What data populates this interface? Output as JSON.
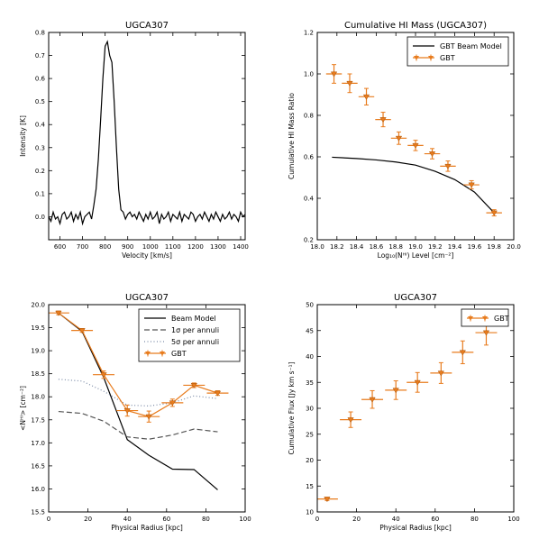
{
  "chart_data": [
    {
      "type": "line",
      "title": "UGCA307",
      "xlabel": "Velocity [km/s]",
      "ylabel": "Intensity [K]",
      "xlim": [
        550,
        1420
      ],
      "ylim": [
        -0.1,
        0.8
      ],
      "xticks": [
        600,
        700,
        800,
        900,
        1000,
        1100,
        1200,
        1300,
        1400
      ],
      "yticks": [
        0.0,
        0.1,
        0.2,
        0.3,
        0.4,
        0.5,
        0.6,
        0.7,
        0.8
      ],
      "x": [
        550,
        560,
        570,
        580,
        590,
        600,
        610,
        620,
        630,
        640,
        650,
        660,
        670,
        680,
        690,
        700,
        710,
        720,
        730,
        740,
        750,
        760,
        770,
        780,
        790,
        800,
        810,
        820,
        830,
        840,
        850,
        860,
        870,
        880,
        890,
        900,
        910,
        920,
        930,
        940,
        950,
        960,
        970,
        980,
        990,
        1000,
        1010,
        1020,
        1030,
        1040,
        1050,
        1060,
        1070,
        1080,
        1090,
        1100,
        1110,
        1120,
        1130,
        1140,
        1150,
        1160,
        1170,
        1180,
        1190,
        1200,
        1210,
        1220,
        1230,
        1240,
        1250,
        1260,
        1270,
        1280,
        1290,
        1300,
        1310,
        1320,
        1330,
        1340,
        1350,
        1360,
        1370,
        1380,
        1390,
        1400,
        1410,
        1420
      ],
      "values": [
        0.0,
        -0.02,
        0.02,
        -0.01,
        0.0,
        -0.03,
        0.01,
        0.02,
        -0.01,
        0.0,
        0.02,
        -0.02,
        0.01,
        -0.01,
        0.02,
        -0.03,
        0.0,
        0.01,
        0.02,
        -0.01,
        0.05,
        0.12,
        0.25,
        0.42,
        0.6,
        0.74,
        0.76,
        0.7,
        0.67,
        0.5,
        0.3,
        0.12,
        0.03,
        0.02,
        -0.01,
        0.01,
        0.02,
        0.0,
        0.01,
        -0.01,
        0.02,
        0.0,
        -0.02,
        0.01,
        -0.01,
        0.02,
        -0.01,
        0.0,
        0.02,
        -0.03,
        0.01,
        -0.01,
        0.0,
        0.02,
        -0.02,
        0.01,
        0.0,
        -0.01,
        0.02,
        -0.02,
        0.01,
        0.0,
        -0.01,
        0.02,
        0.01,
        -0.02,
        0.0,
        0.01,
        -0.01,
        0.02,
        0.0,
        -0.02,
        0.01,
        -0.01,
        0.02,
        0.0,
        -0.02,
        0.01,
        -0.01,
        0.0,
        0.02,
        -0.01,
        0.01,
        0.0,
        -0.02,
        0.02,
        0.0,
        0.01
      ],
      "line_color": "#000000"
    },
    {
      "type": "scatter",
      "title": "Cumulative HI Mass (UGCA307)",
      "xlabel": "Log₁₀(Nᴴᴵ) Level [cm⁻²]",
      "ylabel": "Cumulative HI Mass Ratio",
      "xlim": [
        18.0,
        20.0
      ],
      "ylim": [
        0.2,
        1.2
      ],
      "xticks": [
        "18.0",
        "18.2",
        "18.4",
        "18.6",
        "18.8",
        "19.0",
        "19.2",
        "19.4",
        "19.6",
        "19.8",
        "20.0"
      ],
      "yticks": [
        "0.2",
        "0.4",
        "0.6",
        "0.8",
        "1.0",
        "1.2"
      ],
      "legend_position": "top-right",
      "legend": [
        "GBT Beam Model",
        "GBT"
      ],
      "series": [
        {
          "name": "GBT Beam Model",
          "kind": "line",
          "color": "#000000",
          "x": [
            18.15,
            18.4,
            18.6,
            18.8,
            19.0,
            19.2,
            19.4,
            19.6,
            19.8
          ],
          "y": [
            0.598,
            0.592,
            0.585,
            0.575,
            0.56,
            0.53,
            0.49,
            0.43,
            0.33
          ]
        },
        {
          "name": "GBT",
          "kind": "errorbar",
          "color": "#e87c1e",
          "x": [
            18.17,
            18.33,
            18.5,
            18.67,
            18.83,
            19.0,
            19.17,
            19.33,
            19.57,
            19.8
          ],
          "y": [
            1.0,
            0.955,
            0.89,
            0.78,
            0.69,
            0.655,
            0.615,
            0.555,
            0.465,
            0.33
          ],
          "xerr": 0.08,
          "yerr": [
            0.045,
            0.045,
            0.04,
            0.035,
            0.03,
            0.025,
            0.025,
            0.025,
            0.02,
            0.015
          ]
        }
      ]
    },
    {
      "type": "line",
      "title": "UGCA307",
      "xlabel": "Physical Radius [kpc]",
      "ylabel": "<Nᴴᴵ> [cm⁻²]",
      "xlim": [
        0,
        100
      ],
      "ylim": [
        15.5,
        20.0
      ],
      "xticks": [
        "0",
        "20",
        "40",
        "60",
        "80",
        "100"
      ],
      "yticks": [
        "15.5",
        "16.0",
        "16.5",
        "17.0",
        "17.5",
        "18.0",
        "18.5",
        "19.0",
        "19.5",
        "20.0"
      ],
      "legend_position": "top-right",
      "legend": [
        "Beam Model",
        "1σ per annuli",
        "5σ per annuli",
        "GBT"
      ],
      "series": [
        {
          "name": "Beam Model",
          "kind": "line",
          "color": "#000000",
          "dash": "",
          "x": [
            5,
            17,
            28,
            40,
            51,
            63,
            74,
            86
          ],
          "y": [
            19.82,
            19.42,
            18.42,
            17.07,
            16.73,
            16.43,
            16.42,
            15.98
          ]
        },
        {
          "name": "1σ per annuli",
          "kind": "line",
          "color": "#555555",
          "dash": "6,3",
          "x": [
            5,
            17,
            28,
            40,
            51,
            63,
            74,
            86
          ],
          "y": [
            17.68,
            17.64,
            17.47,
            17.13,
            17.08,
            17.17,
            17.3,
            17.24
          ]
        },
        {
          "name": "5σ per annuli",
          "kind": "line",
          "color": "#7a8aa6",
          "dash": "1,2.5",
          "x": [
            5,
            17,
            28,
            40,
            51,
            63,
            74,
            86
          ],
          "y": [
            18.38,
            18.34,
            18.12,
            17.82,
            17.8,
            17.87,
            18.02,
            17.96
          ]
        },
        {
          "name": "GBT",
          "kind": "errorbar",
          "color": "#e87c1e",
          "connect": true,
          "x": [
            5,
            17,
            28,
            40,
            51,
            63,
            74,
            86
          ],
          "y": [
            19.82,
            19.44,
            18.48,
            17.7,
            17.57,
            17.87,
            18.25,
            18.08
          ],
          "xerr": 5.5,
          "yerr": [
            0.04,
            0.04,
            0.08,
            0.12,
            0.12,
            0.08,
            0.05,
            0.05
          ]
        }
      ]
    },
    {
      "type": "scatter",
      "title": "UGCA307",
      "xlabel": "Physical Radius [kpc]",
      "ylabel": "Cumulative Flux [Jy km s⁻¹]",
      "xlim": [
        0,
        100
      ],
      "ylim": [
        10,
        50
      ],
      "xticks": [
        "0",
        "20",
        "40",
        "60",
        "80",
        "100"
      ],
      "yticks": [
        "10",
        "15",
        "20",
        "25",
        "30",
        "35",
        "40",
        "45",
        "50"
      ],
      "legend_position": "top-right",
      "legend": [
        "GBT"
      ],
      "series": [
        {
          "name": "GBT",
          "kind": "errorbar",
          "color": "#e87c1e",
          "x": [
            5,
            17,
            28,
            40,
            51,
            63,
            74,
            86
          ],
          "y": [
            12.5,
            27.8,
            31.7,
            33.5,
            35.0,
            36.8,
            40.8,
            44.6
          ],
          "xerr": 5.5,
          "yerr": [
            0.3,
            1.5,
            1.7,
            1.8,
            1.9,
            2.0,
            2.2,
            2.4
          ]
        }
      ]
    }
  ]
}
